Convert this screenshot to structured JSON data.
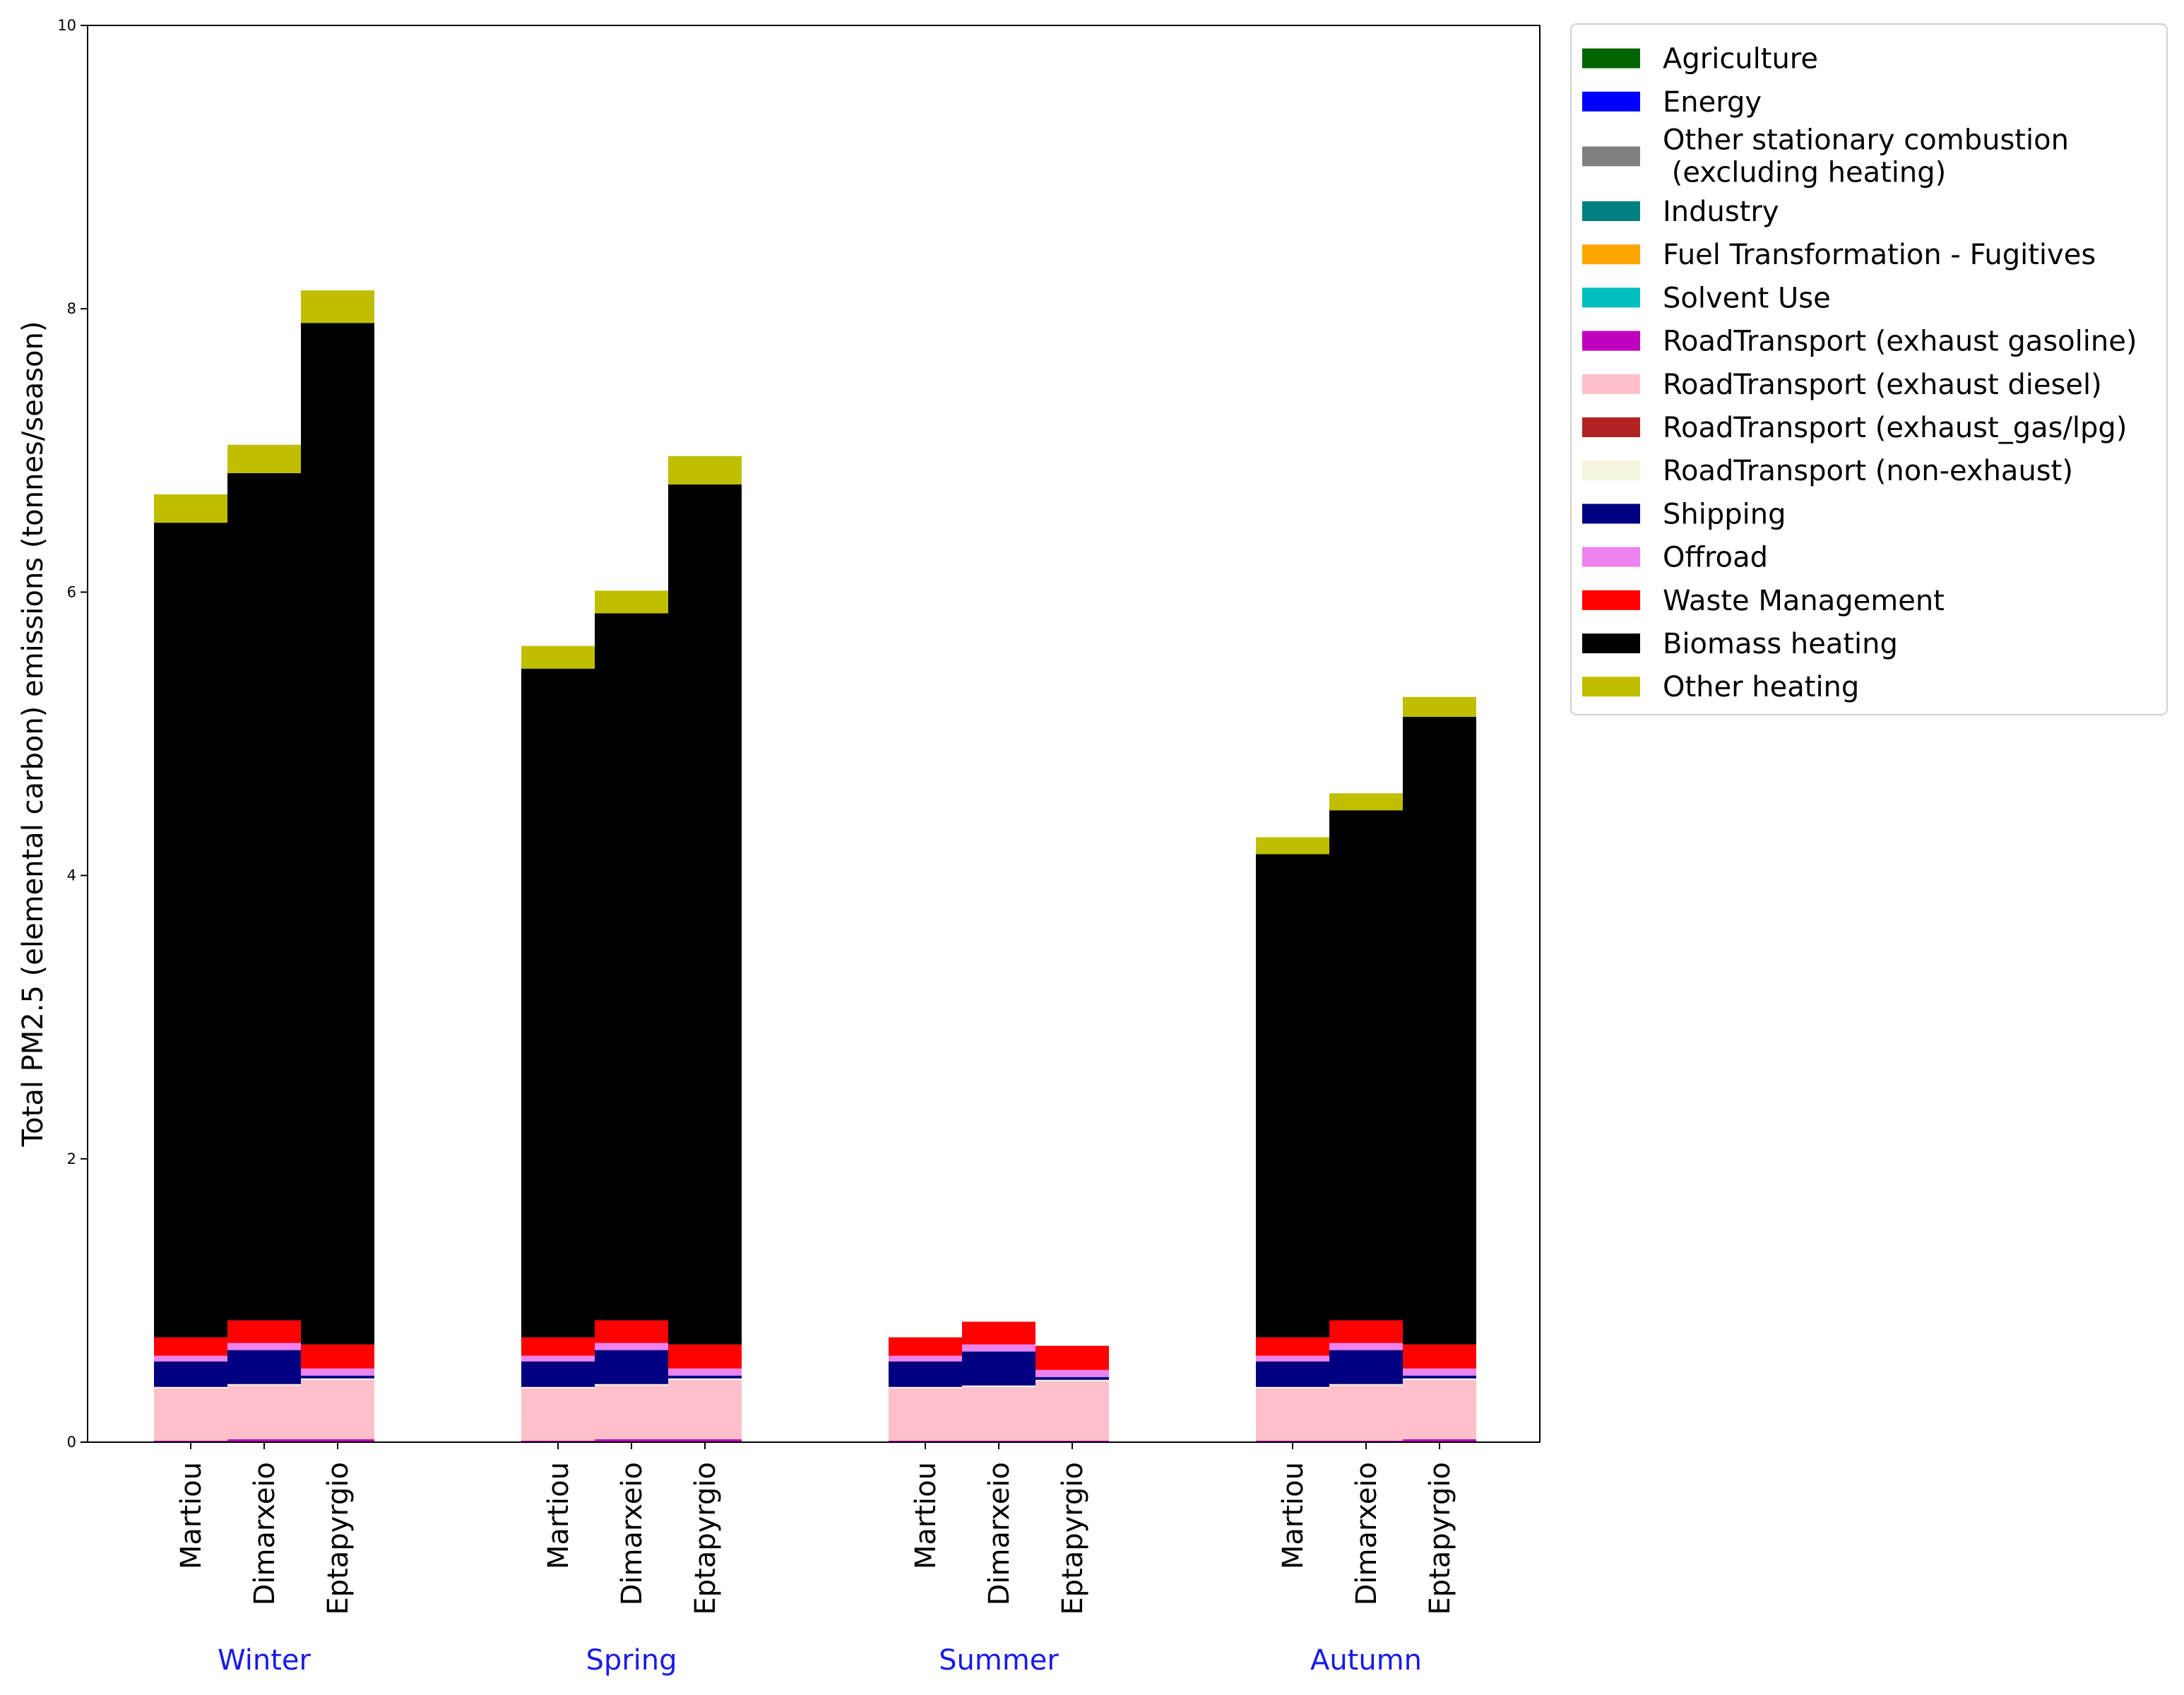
{
  "chart_data": {
    "type": "bar",
    "stacked": true,
    "title": "",
    "xlabel": "",
    "ylabel": "Total PM2.5 (elemental carbon) emissions (tonnes/season)",
    "ylim": [
      0,
      10
    ],
    "yticks": [
      "0",
      "2",
      "4",
      "6",
      "8",
      "10"
    ],
    "grid": false,
    "legend_position": "outside top-right",
    "groups": [
      {
        "name": "Winter",
        "categories": [
          "Martiou",
          "Dimarxeio",
          "Eptapyrgio"
        ]
      },
      {
        "name": "Spring",
        "categories": [
          "Martiou",
          "Dimarxeio",
          "Eptapyrgio"
        ]
      },
      {
        "name": "Summer",
        "categories": [
          "Martiou",
          "Dimarxeio",
          "Eptapyrgio"
        ]
      },
      {
        "name": "Autumn",
        "categories": [
          "Martiou",
          "Dimarxeio",
          "Eptapyrgio"
        ]
      }
    ],
    "series": [
      {
        "name": "Agriculture",
        "color": "#006400",
        "values": [
          0,
          0,
          0,
          0,
          0,
          0,
          0,
          0,
          0,
          0,
          0,
          0
        ]
      },
      {
        "name": "Energy",
        "color": "#0000ff",
        "values": [
          0,
          0,
          0,
          0,
          0,
          0,
          0,
          0,
          0,
          0,
          0,
          0
        ]
      },
      {
        "name": "Other stationary combustion\n (excluding heating)",
        "color": "#808080",
        "values": [
          0,
          0,
          0,
          0,
          0,
          0,
          0,
          0,
          0,
          0,
          0,
          0
        ]
      },
      {
        "name": "Industry",
        "color": "#008080",
        "values": [
          0,
          0,
          0,
          0,
          0,
          0,
          0,
          0,
          0,
          0,
          0,
          0
        ]
      },
      {
        "name": "Fuel Transformation - Fugitives",
        "color": "#ffa500",
        "values": [
          0,
          0,
          0,
          0,
          0,
          0,
          0,
          0,
          0,
          0,
          0,
          0
        ]
      },
      {
        "name": "Solvent Use",
        "color": "#00bfbf",
        "values": [
          0,
          0,
          0,
          0,
          0,
          0,
          0,
          0,
          0,
          0,
          0,
          0
        ]
      },
      {
        "name": "RoadTransport (exhaust gasoline)",
        "color": "#bf00bf",
        "values": [
          0.01,
          0.02,
          0.02,
          0.01,
          0.02,
          0.02,
          0.01,
          0.01,
          0.01,
          0.01,
          0.01,
          0.02
        ]
      },
      {
        "name": "RoadTransport (exhaust diesel)",
        "color": "#ffc0cb",
        "values": [
          0.37,
          0.38,
          0.42,
          0.37,
          0.38,
          0.42,
          0.37,
          0.38,
          0.42,
          0.37,
          0.39,
          0.42
        ]
      },
      {
        "name": "RoadTransport (exhaust_gas/lpg)",
        "color": "#b22222",
        "values": [
          0,
          0,
          0,
          0,
          0,
          0,
          0,
          0,
          0,
          0,
          0,
          0
        ]
      },
      {
        "name": "RoadTransport (non-exhaust)",
        "color": "#f5f5dc",
        "values": [
          0.01,
          0.01,
          0.01,
          0.01,
          0.01,
          0.01,
          0.01,
          0.01,
          0.01,
          0.01,
          0.01,
          0.01
        ]
      },
      {
        "name": "Shipping",
        "color": "#000080",
        "values": [
          0.18,
          0.24,
          0.02,
          0.18,
          0.24,
          0.02,
          0.18,
          0.24,
          0.02,
          0.18,
          0.24,
          0.02
        ]
      },
      {
        "name": "Offroad",
        "color": "#ee82ee",
        "values": [
          0.04,
          0.05,
          0.05,
          0.04,
          0.05,
          0.05,
          0.04,
          0.05,
          0.05,
          0.04,
          0.05,
          0.05
        ]
      },
      {
        "name": "Waste Management",
        "color": "#ff0000",
        "values": [
          0.13,
          0.16,
          0.17,
          0.13,
          0.16,
          0.17,
          0.13,
          0.16,
          0.17,
          0.13,
          0.16,
          0.17
        ]
      },
      {
        "name": "Biomass heating",
        "color": "#000000",
        "values": [
          5.75,
          5.98,
          7.21,
          4.72,
          4.99,
          6.07,
          0,
          0,
          0,
          3.41,
          3.6,
          4.43
        ]
      },
      {
        "name": "Other heating",
        "color": "#bfbf00",
        "values": [
          0.2,
          0.2,
          0.23,
          0.16,
          0.16,
          0.2,
          0,
          0,
          0,
          0.12,
          0.12,
          0.14
        ]
      }
    ]
  }
}
